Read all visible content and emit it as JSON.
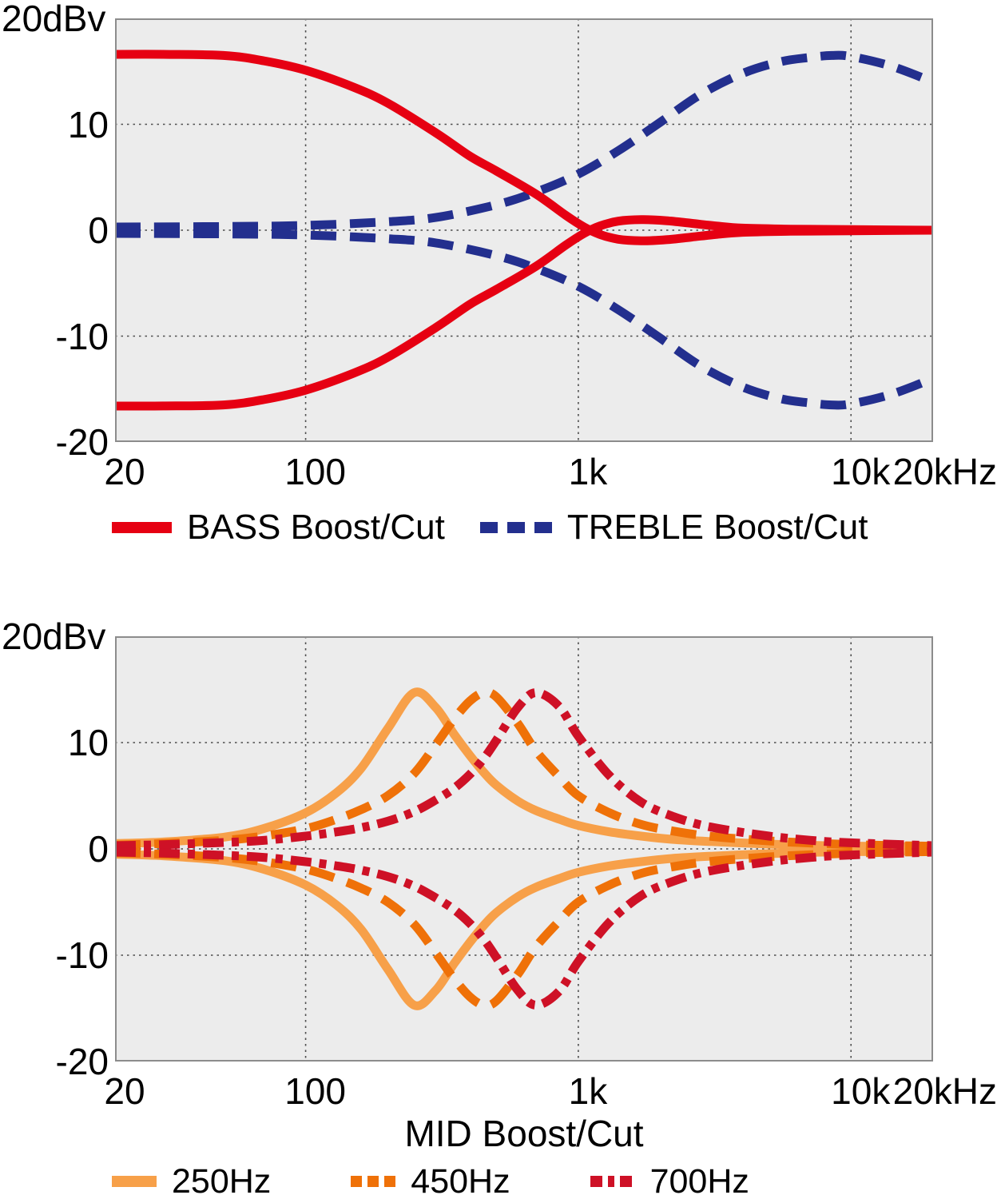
{
  "figure": {
    "background": "#ffffff",
    "plot_background": "#ececec",
    "border_color": "#8c8c8c",
    "grid_color": "#4d4d4d",
    "text_color": "#000000"
  },
  "chart_data": [
    {
      "type": "line",
      "title": "",
      "unit_label": "20dBv",
      "xlabel": "",
      "x_scale": "log",
      "x_range": [
        20,
        20000
      ],
      "y_range": [
        -20,
        20
      ],
      "grid": true,
      "grid_x": [
        100,
        1000,
        10000
      ],
      "grid_y": [
        10,
        0,
        -10
      ],
      "plot_bg": "#ececec",
      "x_ticks": [
        {
          "label": "20",
          "f": 20
        },
        {
          "label": "100",
          "f": 100
        },
        {
          "label": "1k",
          "f": 1000
        },
        {
          "label": "10k",
          "f": 10000
        },
        {
          "label": "20kHz",
          "f": 20000,
          "align": "right"
        }
      ],
      "y_ticks": [
        {
          "label": "10",
          "db": 10
        },
        {
          "label": "0",
          "db": 0
        },
        {
          "label": "-10",
          "db": -10
        },
        {
          "label": "-20",
          "db": -20
        }
      ],
      "legend_position": "bottom",
      "legend": [
        {
          "label": "BASS Boost/Cut",
          "color": "#e60012",
          "style": "solid"
        },
        {
          "label": "TREBLE Boost/Cut",
          "color": "#232f8e",
          "style": "dashed"
        }
      ],
      "series": [
        {
          "name": "BASS Boost/Cut",
          "color": "#e60012",
          "style": "solid",
          "z": 2,
          "boost_cut_symmetric": true,
          "x": [
            20,
            30,
            50,
            70,
            100,
            150,
            200,
            300,
            400,
            500,
            700,
            900,
            1050,
            1200,
            1400,
            1700,
            2100,
            2600,
            3200,
            4000,
            6000,
            10000,
            20000
          ],
          "y": [
            16.6,
            16.6,
            16.5,
            16.0,
            15.1,
            13.5,
            12.0,
            9.2,
            7.0,
            5.6,
            3.4,
            1.4,
            0.3,
            -0.4,
            -0.85,
            -1.0,
            -0.9,
            -0.65,
            -0.4,
            -0.2,
            -0.1,
            -0.05,
            0
          ]
        },
        {
          "name": "TREBLE Boost/Cut",
          "color": "#232f8e",
          "style": "dashed",
          "z": 1,
          "boost_cut_symmetric": true,
          "x": [
            20,
            50,
            100,
            200,
            300,
            500,
            700,
            1000,
            1400,
            2000,
            2800,
            4000,
            5500,
            7000,
            8500,
            10000,
            14000,
            20000
          ],
          "y": [
            0.3,
            0.35,
            0.45,
            0.8,
            1.2,
            2.4,
            3.6,
            5.3,
            7.5,
            10.2,
            12.8,
            14.8,
            15.9,
            16.3,
            16.5,
            16.4,
            15.5,
            14.0
          ]
        }
      ]
    },
    {
      "type": "line",
      "title": "",
      "unit_label": "20dBv",
      "xlabel": "MID Boost/Cut",
      "x_scale": "log",
      "x_range": [
        20,
        20000
      ],
      "y_range": [
        -20,
        20
      ],
      "grid": true,
      "grid_x": [
        100,
        1000,
        10000
      ],
      "grid_y": [
        10,
        0,
        -10
      ],
      "plot_bg": "#ececec",
      "x_ticks": [
        {
          "label": "20",
          "f": 20
        },
        {
          "label": "100",
          "f": 100
        },
        {
          "label": "1k",
          "f": 1000
        },
        {
          "label": "10k",
          "f": 10000
        },
        {
          "label": "20kHz",
          "f": 20000,
          "align": "right"
        }
      ],
      "y_ticks": [
        {
          "label": "10",
          "db": 10
        },
        {
          "label": "0",
          "db": 0
        },
        {
          "label": "-10",
          "db": -10
        },
        {
          "label": "-20",
          "db": -20
        }
      ],
      "legend_position": "bottom",
      "legend": [
        {
          "label": "250Hz",
          "color": "#f7a049",
          "style": "solid"
        },
        {
          "label": "450Hz",
          "color": "#ef7108",
          "style": "dashed"
        },
        {
          "label": "700Hz",
          "color": "#ce1126",
          "style": "dashdot"
        }
      ],
      "series": [
        {
          "name": "250Hz",
          "color": "#f7a049",
          "style": "solid",
          "z": 1,
          "boost_cut_symmetric": true,
          "x": [
            20,
            30,
            50,
            70,
            100,
            130,
            160,
            200,
            250,
            300,
            350,
            400,
            450,
            500,
            600,
            700,
            850,
            1000,
            1300,
            1700,
            2200,
            3000,
            5000,
            8000,
            12000,
            20000
          ],
          "y": [
            0.5,
            0.65,
            1.1,
            1.9,
            3.4,
            5.3,
            7.6,
            11.3,
            14.7,
            13.3,
            10.8,
            8.8,
            7.2,
            6.0,
            4.5,
            3.6,
            2.8,
            2.2,
            1.6,
            1.2,
            0.9,
            0.7,
            0.45,
            0.3,
            0.25,
            0.2
          ]
        },
        {
          "name": "450Hz",
          "color": "#ef7108",
          "style": "dashed",
          "z": 2,
          "boost_cut_symmetric": true,
          "x": [
            20,
            30,
            50,
            70,
            100,
            130,
            160,
            200,
            250,
            300,
            350,
            400,
            450,
            500,
            600,
            700,
            850,
            1000,
            1300,
            1700,
            2200,
            3000,
            5000,
            8000,
            12000,
            20000
          ],
          "y": [
            0.35,
            0.5,
            0.8,
            1.2,
            1.9,
            2.8,
            3.7,
            5.0,
            7.1,
            9.8,
            12.2,
            13.9,
            14.7,
            14.3,
            11.8,
            9.2,
            6.8,
            5.0,
            3.4,
            2.3,
            1.7,
            1.2,
            0.75,
            0.5,
            0.35,
            0.25
          ]
        },
        {
          "name": "700Hz",
          "color": "#ce1126",
          "style": "dashdot",
          "z": 3,
          "boost_cut_symmetric": true,
          "x": [
            20,
            30,
            50,
            70,
            100,
            130,
            160,
            200,
            250,
            300,
            350,
            400,
            450,
            500,
            600,
            700,
            850,
            1000,
            1300,
            1700,
            2200,
            3000,
            5000,
            8000,
            12000,
            20000
          ],
          "y": [
            0.3,
            0.4,
            0.6,
            0.8,
            1.2,
            1.6,
            2.0,
            2.6,
            3.5,
            4.6,
            5.7,
            7.0,
            8.5,
            10.2,
            13.3,
            14.7,
            13.4,
            10.6,
            6.9,
            4.4,
            3.1,
            2.1,
            1.2,
            0.7,
            0.5,
            0.3
          ]
        }
      ]
    }
  ]
}
